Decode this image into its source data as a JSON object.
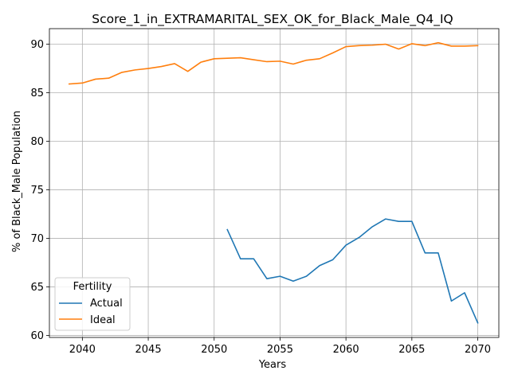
{
  "chart_data": {
    "type": "line",
    "title": "Score_1_in_EXTRAMARITAL_SEX_OK_for_Black_Male_Q4_IQ",
    "xlabel": "Years",
    "ylabel": "% of Black_Male Population",
    "xlim": [
      2037.5,
      2071.6
    ],
    "ylim": [
      59.8,
      91.6
    ],
    "xticks": [
      2040,
      2045,
      2050,
      2055,
      2060,
      2065,
      2070
    ],
    "yticks": [
      60,
      65,
      70,
      75,
      80,
      85,
      90
    ],
    "grid": true,
    "legend": {
      "title": "Fertility",
      "placement": "lower-left"
    },
    "series": [
      {
        "name": "Actual",
        "color": "#1f77b4",
        "x": [
          2051,
          2052,
          2053,
          2054,
          2055,
          2056,
          2057,
          2058,
          2059,
          2060,
          2061,
          2062,
          2063,
          2064,
          2065,
          2066,
          2067,
          2068,
          2069,
          2070
        ],
        "values": [
          70.9,
          67.9,
          67.9,
          65.85,
          66.1,
          65.6,
          66.1,
          67.2,
          67.8,
          69.3,
          70.1,
          71.2,
          72.0,
          71.75,
          71.75,
          68.5,
          68.5,
          63.55,
          64.4,
          61.3
        ]
      },
      {
        "name": "Ideal",
        "color": "#ff7f0e",
        "x": [
          2039,
          2040,
          2041,
          2042,
          2043,
          2044,
          2045,
          2046,
          2047,
          2048,
          2049,
          2050,
          2051,
          2052,
          2053,
          2054,
          2055,
          2056,
          2057,
          2058,
          2059,
          2060,
          2061,
          2062,
          2063,
          2064,
          2065,
          2066,
          2067,
          2068,
          2069,
          2070
        ],
        "values": [
          85.9,
          86.0,
          86.4,
          86.5,
          87.1,
          87.35,
          87.5,
          87.7,
          88.0,
          87.2,
          88.15,
          88.5,
          88.55,
          88.6,
          88.4,
          88.2,
          88.25,
          87.95,
          88.35,
          88.5,
          89.1,
          89.75,
          89.85,
          89.9,
          90.0,
          89.5,
          90.05,
          89.85,
          90.15,
          89.8,
          89.8,
          89.85
        ]
      }
    ]
  }
}
